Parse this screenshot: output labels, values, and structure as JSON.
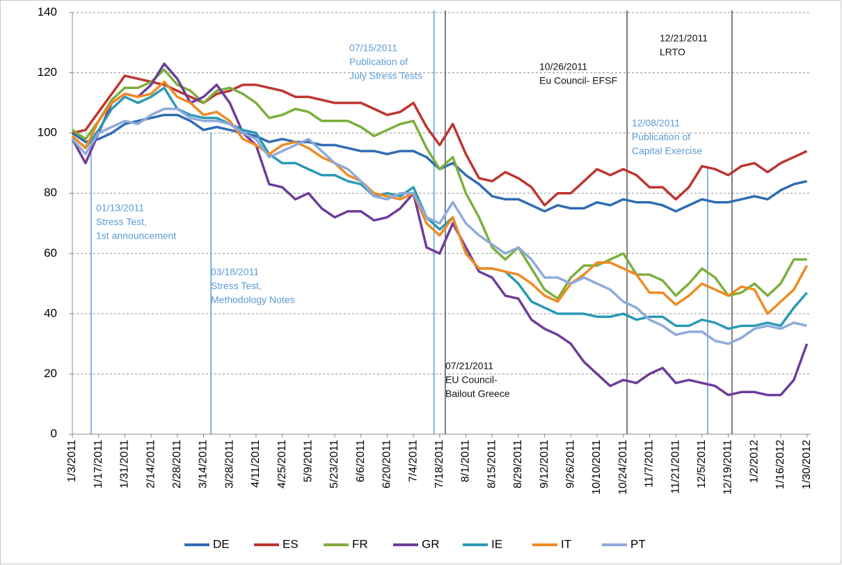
{
  "chart_data": {
    "type": "line",
    "x": [
      "1/3/2011",
      "1/10/2011",
      "1/17/2011",
      "1/24/2011",
      "1/31/2011",
      "2/7/2011",
      "2/14/2011",
      "2/21/2011",
      "2/28/2011",
      "3/7/2011",
      "3/14/2011",
      "3/21/2011",
      "3/28/2011",
      "4/4/2011",
      "4/11/2011",
      "4/18/2011",
      "4/25/2011",
      "5/2/2011",
      "5/9/2011",
      "5/16/2011",
      "5/23/2011",
      "5/30/2011",
      "6/6/2011",
      "6/13/2011",
      "6/20/2011",
      "6/27/2011",
      "7/4/2011",
      "7/11/2011",
      "7/18/2011",
      "7/25/2011",
      "8/1/2011",
      "8/8/2011",
      "8/15/2011",
      "8/22/2011",
      "8/29/2011",
      "9/5/2011",
      "9/12/2011",
      "9/19/2011",
      "9/26/2011",
      "10/3/2011",
      "10/10/2011",
      "10/17/2011",
      "10/24/2011",
      "10/31/2011",
      "11/7/2011",
      "11/14/2011",
      "11/21/2011",
      "11/28/2011",
      "12/5/2011",
      "12/12/2011",
      "12/19/2011",
      "12/26/2011",
      "1/2/2012",
      "1/9/2012",
      "1/16/2012",
      "1/23/2012",
      "1/30/2012"
    ],
    "xlim": [
      "1/3/2011",
      "2/1/2012"
    ],
    "xticks": [
      "1/3/2011",
      "1/17/2011",
      "1/31/2011",
      "2/14/2011",
      "2/28/2011",
      "3/14/2011",
      "3/28/2011",
      "4/11/2011",
      "4/25/2011",
      "5/9/2011",
      "5/23/2011",
      "6/6/2011",
      "6/20/2011",
      "7/4/2011",
      "7/18/2011",
      "8/1/2011",
      "8/15/2011",
      "8/29/2011",
      "9/12/2011",
      "9/26/2011",
      "10/10/2011",
      "10/24/2011",
      "11/7/2011",
      "11/21/2011",
      "12/5/2011",
      "12/19/2011",
      "1/2/2012",
      "1/16/2012",
      "1/30/2012"
    ],
    "ylim": [
      0,
      140
    ],
    "yticks": [
      0,
      20,
      40,
      60,
      80,
      100,
      120,
      140
    ],
    "grid": true,
    "series": [
      {
        "name": "DE",
        "color": "#2f6cb3",
        "values": [
          100,
          97,
          98,
          100,
          103,
          104,
          105,
          106,
          106,
          104,
          101,
          102,
          101,
          100,
          99,
          97,
          98,
          97,
          97,
          96,
          96,
          95,
          94,
          94,
          93,
          94,
          94,
          92,
          88,
          90,
          86,
          83,
          79,
          78,
          78,
          76,
          74,
          76,
          75,
          75,
          77,
          76,
          78,
          77,
          77,
          76,
          74,
          76,
          78,
          77,
          77,
          78,
          79,
          78,
          81,
          83,
          84
        ]
      },
      {
        "name": "ES",
        "color": "#bd3530",
        "values": [
          100,
          101,
          107,
          113,
          119,
          118,
          117,
          116,
          114,
          112,
          110,
          113,
          114,
          116,
          116,
          115,
          114,
          112,
          112,
          111,
          110,
          110,
          110,
          108,
          106,
          107,
          110,
          102,
          96,
          103,
          93,
          85,
          84,
          87,
          85,
          82,
          76,
          80,
          80,
          84,
          88,
          86,
          88,
          86,
          82,
          82,
          78,
          82,
          89,
          88,
          86,
          89,
          90,
          87,
          90,
          92,
          94
        ]
      },
      {
        "name": "FR",
        "color": "#7dae3c",
        "values": [
          101,
          98,
          104,
          111,
          115,
          115,
          117,
          121,
          116,
          114,
          110,
          114,
          115,
          113,
          110,
          105,
          106,
          108,
          107,
          104,
          104,
          104,
          102,
          99,
          101,
          103,
          104,
          95,
          88,
          92,
          80,
          72,
          62,
          58,
          62,
          55,
          48,
          45,
          52,
          56,
          56,
          58,
          60,
          53,
          53,
          51,
          46,
          50,
          55,
          52,
          46,
          47,
          50,
          46,
          50,
          58,
          58
        ]
      },
      {
        "name": "GR",
        "color": "#6e3d98",
        "values": [
          98,
          90,
          100,
          110,
          113,
          112,
          116,
          123,
          118,
          110,
          112,
          116,
          110,
          100,
          96,
          83,
          82,
          78,
          80,
          75,
          72,
          74,
          74,
          71,
          72,
          75,
          80,
          62,
          60,
          70,
          62,
          54,
          52,
          46,
          45,
          38,
          35,
          33,
          30,
          24,
          20,
          16,
          18,
          17,
          20,
          22,
          17,
          18,
          17,
          16,
          13,
          14,
          14,
          13,
          13,
          18,
          30
        ]
      },
      {
        "name": "IE",
        "color": "#2b9ab4",
        "values": [
          99,
          95,
          101,
          108,
          112,
          110,
          112,
          115,
          108,
          106,
          105,
          105,
          103,
          101,
          100,
          93,
          90,
          90,
          88,
          86,
          86,
          84,
          83,
          79,
          80,
          79,
          82,
          72,
          68,
          72,
          60,
          55,
          55,
          54,
          50,
          44,
          42,
          40,
          40,
          40,
          39,
          39,
          40,
          38,
          39,
          39,
          36,
          36,
          38,
          37,
          35,
          36,
          36,
          37,
          36,
          42,
          47
        ]
      },
      {
        "name": "IT",
        "color": "#f08a24",
        "values": [
          99,
          95,
          104,
          110,
          113,
          112,
          113,
          117,
          112,
          110,
          106,
          107,
          104,
          98,
          96,
          93,
          96,
          97,
          95,
          92,
          90,
          86,
          84,
          80,
          79,
          78,
          80,
          70,
          66,
          72,
          60,
          55,
          55,
          54,
          53,
          50,
          46,
          44,
          50,
          53,
          57,
          57,
          55,
          53,
          47,
          47,
          43,
          46,
          50,
          48,
          46,
          49,
          48,
          40,
          44,
          48,
          56
        ]
      },
      {
        "name": "PT",
        "color": "#8eaadb",
        "values": [
          98,
          93,
          100,
          102,
          104,
          103,
          106,
          108,
          108,
          105,
          104,
          104,
          103,
          100,
          98,
          92,
          94,
          96,
          98,
          94,
          90,
          88,
          84,
          79,
          78,
          80,
          80,
          72,
          70,
          77,
          70,
          66,
          63,
          60,
          62,
          58,
          52,
          52,
          50,
          52,
          50,
          48,
          44,
          42,
          38,
          36,
          33,
          34,
          34,
          31,
          30,
          32,
          35,
          36,
          35,
          37,
          36
        ]
      }
    ],
    "annotations": [
      {
        "lines": [
          "01/13/2011",
          "Stress Test,",
          "1st announcement"
        ],
        "color": "#5b9bd5"
      },
      {
        "lines": [
          "03/18/2011",
          "Stress Test,",
          "Methodology Notes"
        ],
        "color": "#5b9bd5"
      },
      {
        "lines": [
          "07/15/2011",
          "Publication of",
          "July Stress Tests"
        ],
        "color": "#5b9bd5"
      },
      {
        "lines": [
          "07/21/2011",
          "EU Council-",
          "Bailout  Greece"
        ],
        "color": "#111111"
      },
      {
        "lines": [
          "10/26/2011",
          "Eu Council- EFSF"
        ],
        "color": "#111111"
      },
      {
        "lines": [
          "12/08/2011",
          "Publication of",
          "Capital Exercise"
        ],
        "color": "#5b9bd5"
      },
      {
        "lines": [
          "12/21/2011",
          "LRTO"
        ],
        "color": "#111111"
      }
    ]
  }
}
